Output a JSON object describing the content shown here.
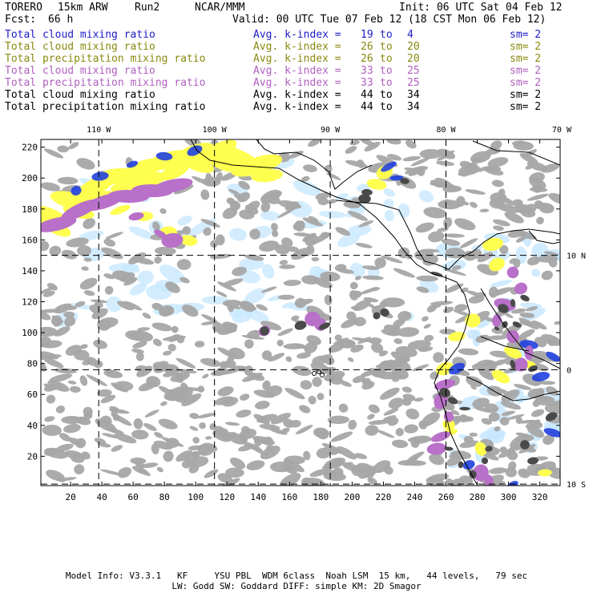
{
  "header": {
    "model": "TORERO",
    "resolution": "15km ARW",
    "run": "Run2",
    "org": "NCAR/MMM",
    "init": "Init: 06 UTC Sat 04 Feb 12",
    "fcst_label": "Fcst:",
    "fcst_value": "66 h",
    "valid": "Valid: 00 UTC Tue 07 Feb 12 (18 CST Mon 06 Feb 12)"
  },
  "legend": [
    {
      "field": "Total cloud mixing ratio",
      "avg": "Avg. k-index =",
      "k1": "19",
      "to": "to",
      "k2": "4",
      "sm": "sm= 2",
      "color": "#1c1cc8"
    },
    {
      "field": "Total cloud mixing ratio",
      "avg": "Avg. k-index =",
      "k1": "26",
      "to": "to",
      "k2": "20",
      "sm": "sm= 2",
      "color": "#8a8a10"
    },
    {
      "field": "Total precipitation mixing ratio",
      "avg": "Avg. k-index =",
      "k1": "26",
      "to": "to",
      "k2": "20",
      "sm": "sm= 2",
      "color": "#8a8a10"
    },
    {
      "field": "Total cloud mixing ratio",
      "avg": "Avg. k-index =",
      "k1": "33",
      "to": "to",
      "k2": "25",
      "sm": "sm= 2",
      "color": "#b060c0"
    },
    {
      "field": "Total precipitation mixing ratio",
      "avg": "Avg. k-index =",
      "k1": "33",
      "to": "to",
      "k2": "25",
      "sm": "sm= 2",
      "color": "#b060c0"
    },
    {
      "field": "Total cloud mixing ratio",
      "avg": "Avg. k-index =",
      "k1": "44",
      "to": "to",
      "k2": "34",
      "sm": "sm= 2",
      "color": "#000000"
    },
    {
      "field": "Total precipitation mixing ratio",
      "avg": "Avg. k-index =",
      "k1": "44",
      "to": "to",
      "k2": "34",
      "sm": "sm= 2",
      "color": "#000000"
    }
  ],
  "map": {
    "lon_labels": [
      {
        "text": "110 W",
        "grid_x": 38
      },
      {
        "text": "100 W",
        "grid_x": 112
      },
      {
        "text": "90 W",
        "grid_x": 186
      },
      {
        "text": "80 W",
        "grid_x": 260
      },
      {
        "text": "70 W",
        "grid_x": 334
      }
    ],
    "lat_labels": [
      {
        "text": "10 N",
        "grid_y": 150
      },
      {
        "text": "0",
        "grid_y": 76
      },
      {
        "text": "10 S",
        "grid_y": 2
      }
    ],
    "x_ticks": [
      20,
      40,
      60,
      80,
      100,
      120,
      140,
      160,
      180,
      200,
      220,
      240,
      260,
      280,
      300,
      320
    ],
    "y_ticks": [
      20,
      40,
      60,
      80,
      100,
      120,
      140,
      160,
      180,
      200,
      220
    ],
    "x_range": [
      1,
      333
    ],
    "y_range": [
      1,
      225
    ],
    "colors": {
      "gray": "#a6a6a6",
      "dark": "#4a4a4a",
      "yellow": "#ffff50",
      "purple": "#b870c8",
      "lightblue": "#c8e8ff",
      "blue": "#2040e0",
      "coast": "#000000"
    }
  },
  "footer": {
    "line1": "Model Info: V3.3.1   KF     YSU PBL  WDM 6class  Noah LSM  15 km,   44 levels,   79 sec",
    "line2": "LW: Godd SW: Goddard DIFF: simple KM: 2D Smagor"
  }
}
